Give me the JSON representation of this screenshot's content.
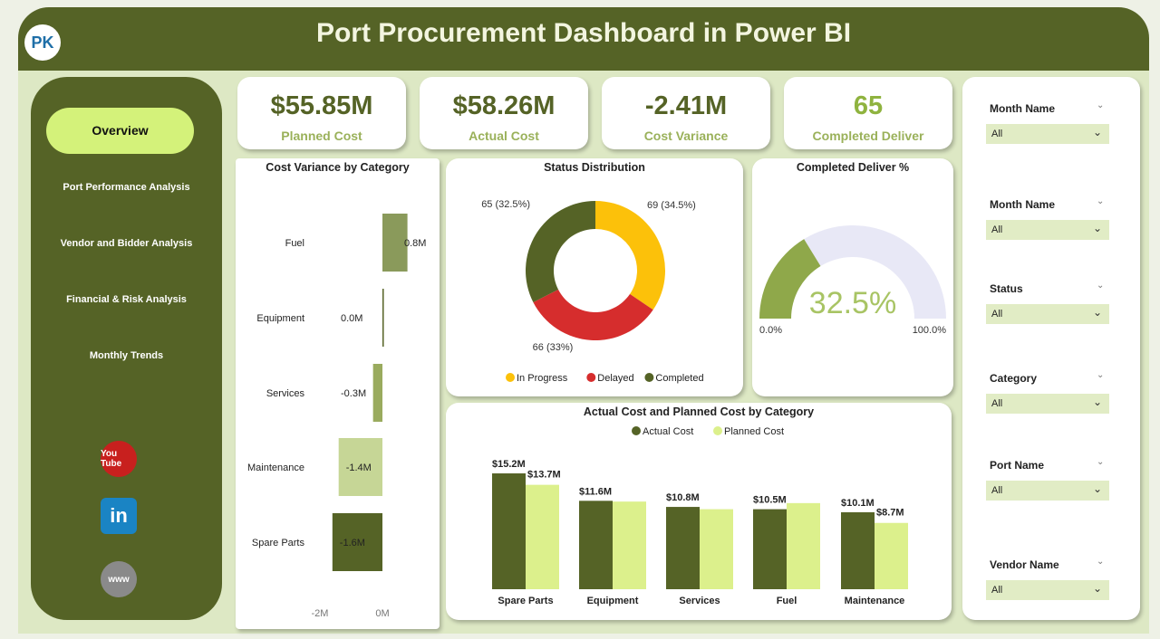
{
  "header": {
    "title": "Port Procurement Dashboard in Power BI",
    "logo_text": "PK"
  },
  "sidebar": {
    "items": [
      {
        "label": "Overview",
        "active": true
      },
      {
        "label": "Port Performance Analysis"
      },
      {
        "label": "Vendor and Bidder Analysis"
      },
      {
        "label": "Financial & Risk Analysis"
      },
      {
        "label": "Monthly Trends"
      }
    ],
    "social": [
      {
        "icon": "youtube-icon",
        "label": "You Tube"
      },
      {
        "icon": "linkedin-icon",
        "label": "in"
      },
      {
        "icon": "globe-icon",
        "label": "www"
      }
    ]
  },
  "kpis": [
    {
      "value": "$55.85M",
      "label": "Planned Cost"
    },
    {
      "value": "$58.26M",
      "label": "Actual Cost"
    },
    {
      "value": "-2.41M",
      "label": "Cost Variance"
    },
    {
      "value": "65",
      "label": "Completed Deliver",
      "value_color": "#8fb33f"
    }
  ],
  "chart_data": [
    {
      "type": "bar",
      "orientation": "horizontal",
      "title": "Cost Variance by Category",
      "categories": [
        "Fuel",
        "Equipment",
        "Services",
        "Maintenance",
        "Spare Parts"
      ],
      "values": [
        0.8,
        0.0,
        -0.3,
        -1.4,
        -1.6
      ],
      "labels": [
        "0.8M",
        "0.0M",
        "-0.3M",
        "-1.4M",
        "-1.6M"
      ],
      "xticks": [
        "-2M",
        "0M"
      ],
      "xlim": [
        -2,
        0.8
      ],
      "colors": [
        "#8a9a5b",
        "#556326",
        "#9aab5e",
        "#c6d696",
        "#556326"
      ]
    },
    {
      "type": "pie",
      "donut": true,
      "title": "Status Distribution",
      "categories": [
        "In Progress",
        "Delayed",
        "Completed"
      ],
      "values": [
        69,
        66,
        65
      ],
      "labels": [
        "69 (34.5%)",
        "66 (33%)",
        "65 (32.5%)"
      ],
      "colors": [
        "#fcc10a",
        "#d62d2d",
        "#556326"
      ],
      "legend": "bottom"
    },
    {
      "type": "gauge",
      "title": "Completed Deliver %",
      "value": 32.5,
      "value_label": "32.5%",
      "min_label": "0.0%",
      "max_label": "100.0%",
      "range": [
        0,
        100
      ],
      "colors": [
        "#8fa84a",
        "#e8e8f6"
      ]
    },
    {
      "type": "bar",
      "title": "Actual Cost and Planned Cost by Category",
      "categories": [
        "Spare Parts",
        "Equipment",
        "Services",
        "Fuel",
        "Maintenance"
      ],
      "legend": "top",
      "ylim": [
        0,
        16
      ],
      "series": [
        {
          "name": "Actual Cost",
          "color": "#556326",
          "values": [
            15.2,
            11.6,
            10.8,
            10.5,
            10.1
          ],
          "labels": [
            "$15.2M",
            "$11.6M",
            "$10.8M",
            "$10.5M",
            "$10.1M"
          ]
        },
        {
          "name": "Planned Cost",
          "color": "#dcf08c",
          "values": [
            13.7,
            11.5,
            10.5,
            11.3,
            8.7
          ],
          "labels": [
            "$13.7M",
            null,
            null,
            null,
            "$8.7M"
          ]
        }
      ]
    }
  ],
  "filters": [
    {
      "label": "Month Name",
      "value": "All"
    },
    {
      "label": "Month Name",
      "value": "All"
    },
    {
      "label": "Status",
      "value": "All"
    },
    {
      "label": "Category",
      "value": "All"
    },
    {
      "label": "Port Name",
      "value": "All"
    },
    {
      "label": "Vendor Name",
      "value": "All"
    }
  ]
}
